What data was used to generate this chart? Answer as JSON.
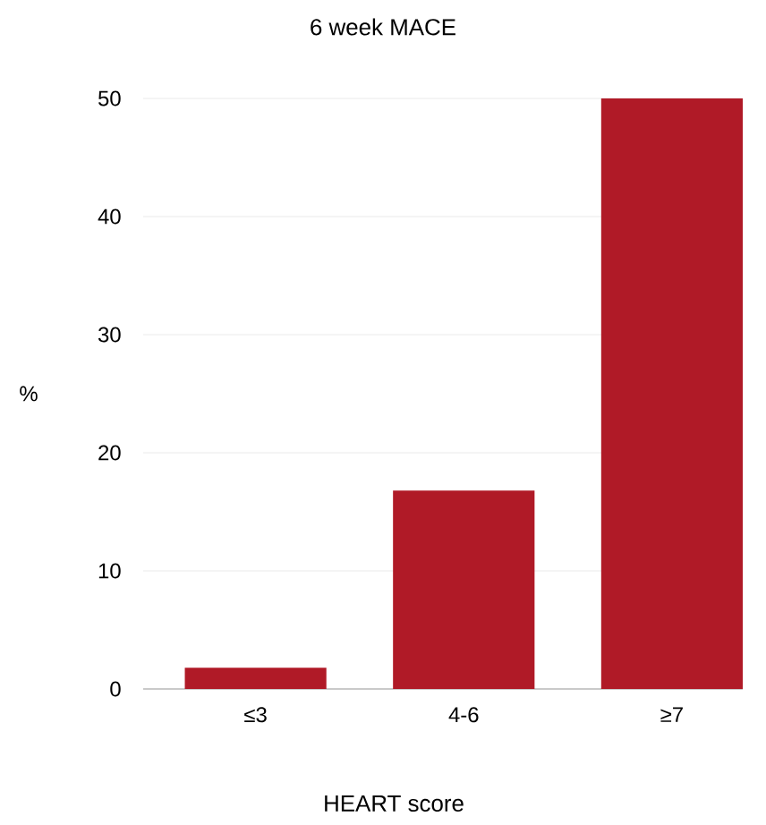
{
  "chart_data": {
    "type": "bar",
    "title": "6 week MACE",
    "xlabel": "HEART score",
    "ylabel": "%",
    "categories": [
      "≤3",
      "4-6",
      "≥7"
    ],
    "values": [
      1.8,
      16.8,
      50
    ],
    "color": "#b01a27",
    "ylim": [
      0,
      50
    ],
    "yticks": [
      0,
      10,
      20,
      30,
      40,
      50
    ],
    "grid": "y"
  }
}
